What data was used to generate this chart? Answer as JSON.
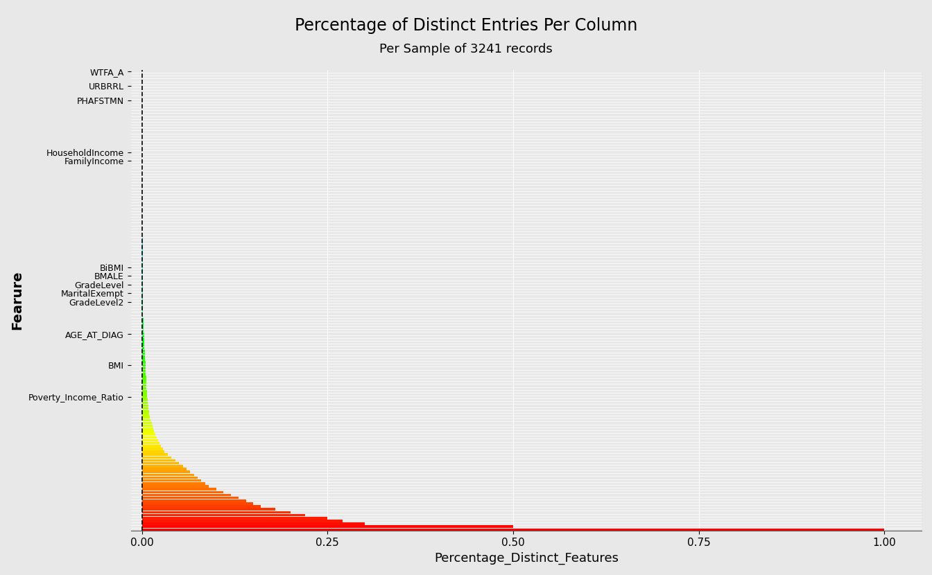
{
  "title": "Percentage of Distinct Entries Per Column",
  "subtitle": "Per Sample of 3241 records",
  "xlabel": "Percentage_Distinct_Features",
  "ylabel": "Fearure",
  "xlim_min": -0.015,
  "xlim_max": 1.05,
  "xticks": [
    0.0,
    0.25,
    0.5,
    0.75,
    1.0
  ],
  "xtick_labels": [
    "0.00",
    "0.25",
    "0.50",
    "0.75",
    "1.00"
  ],
  "vline_x": 0.0,
  "background_color": "#e8e8e8",
  "title_fontsize": 17,
  "subtitle_fontsize": 13,
  "xlabel_fontsize": 13,
  "ylabel_fontsize": 14,
  "n_features": 160
}
